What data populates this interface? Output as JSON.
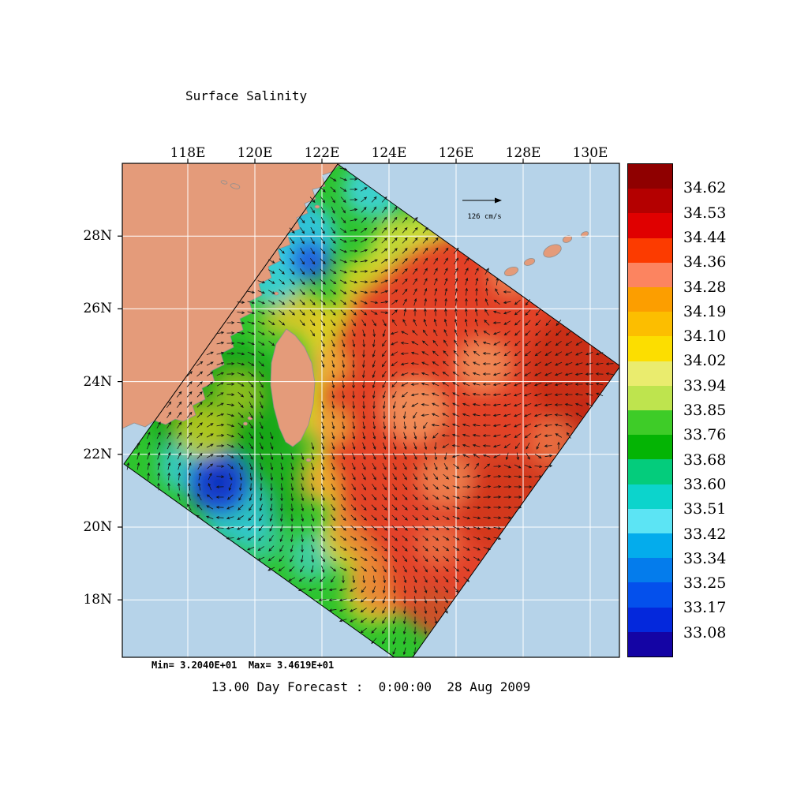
{
  "title": "Surface Salinity",
  "axes": {
    "lon": [
      "118E",
      "120E",
      "122E",
      "124E",
      "126E",
      "128E",
      "130E"
    ],
    "lat": [
      "28N",
      "26N",
      "24N",
      "22N",
      "20N",
      "18N"
    ]
  },
  "colorbar": {
    "labels": [
      "34.62",
      "34.53",
      "34.44",
      "34.36",
      "34.28",
      "34.19",
      "34.10",
      "34.02",
      "33.94",
      "33.85",
      "33.76",
      "33.68",
      "33.60",
      "33.51",
      "33.42",
      "33.34",
      "33.25",
      "33.17",
      "33.08"
    ],
    "colors": [
      "#8f0000",
      "#b40000",
      "#e00000",
      "#fc3b00",
      "#fc8460",
      "#fc9e00",
      "#fcbe00",
      "#fcde00",
      "#eaec6e",
      "#bee44e",
      "#3ecc28",
      "#04b404",
      "#04cc7c",
      "#0cd4cc",
      "#5ce4f4",
      "#04acec",
      "#047cec",
      "#0450ec",
      "#0428dc",
      "#1404a4"
    ]
  },
  "legend": {
    "vector_label": "126 cm/s"
  },
  "footer": {
    "minmax": "Min= 3.2040E+01  Max= 3.4619E+01",
    "forecast": "13.00 Day Forecast :  0:00:00  28 Aug 2009"
  },
  "palette": {
    "ocean": "#b6d3e9",
    "land": "#e49b7a"
  },
  "chart_data": {
    "type": "heatmap",
    "title": "Surface Salinity",
    "colorbar_ticks": [
      34.62,
      34.53,
      34.44,
      34.36,
      34.28,
      34.19,
      34.1,
      34.02,
      33.94,
      33.85,
      33.76,
      33.68,
      33.6,
      33.51,
      33.42,
      33.34,
      33.25,
      33.17,
      33.08
    ],
    "min_label": "3.2040E+01",
    "max_label": "3.4619E+01",
    "x_ticks": [
      "118E",
      "120E",
      "122E",
      "124E",
      "126E",
      "128E",
      "130E"
    ],
    "y_ticks": [
      "28N",
      "26N",
      "24N",
      "22N",
      "20N",
      "18N"
    ],
    "vector_scale": "126 cm/s",
    "caption": "13.00 Day Forecast :  0:00:00  28 Aug 2009"
  }
}
